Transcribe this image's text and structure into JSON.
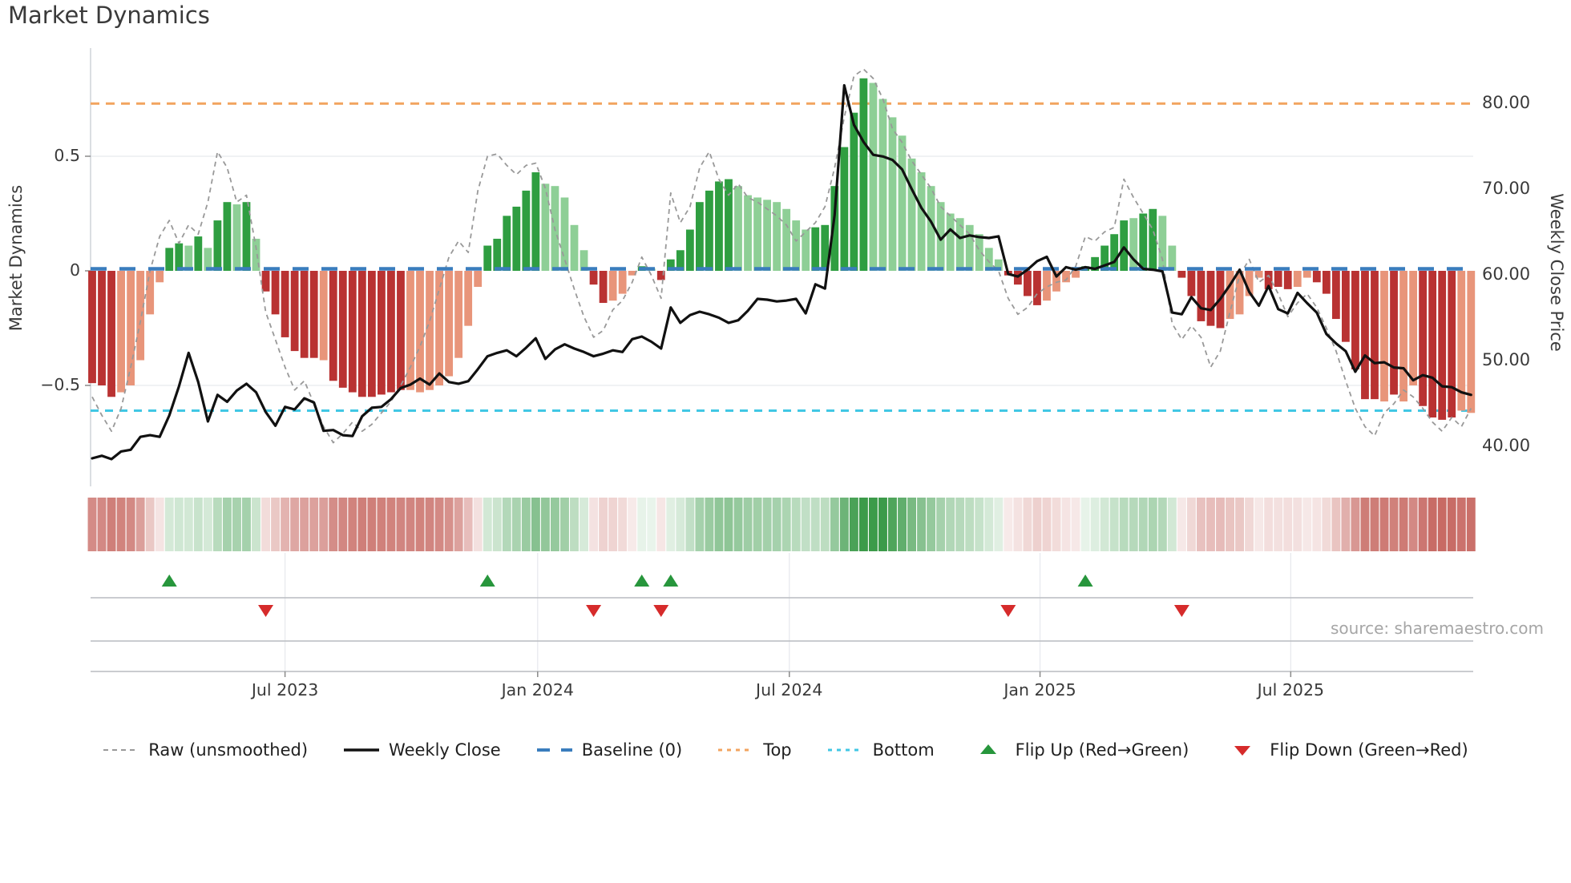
{
  "title": "Market Dynamics",
  "axes": {
    "left_label": "Market Dynamics",
    "right_label": "Weekly Close Price",
    "left_ticks": [
      {
        "label": "0.5",
        "value": 0.5
      },
      {
        "label": "0",
        "value": 0
      },
      {
        "label": "−0.5",
        "value": -0.5
      }
    ],
    "right_ticks": [
      {
        "label": "80.00",
        "value": 80
      },
      {
        "label": "70.00",
        "value": 70
      },
      {
        "label": "60.00",
        "value": 60
      },
      {
        "label": "50.00",
        "value": 50
      },
      {
        "label": "40.00",
        "value": 40
      }
    ],
    "x_ticks": [
      {
        "label": "Jul 2023",
        "week": 20.0
      },
      {
        "label": "Jan 2024",
        "week": 46.2
      },
      {
        "label": "Jul 2024",
        "week": 72.3
      },
      {
        "label": "Jan 2025",
        "week": 98.3
      },
      {
        "label": "Jul 2025",
        "week": 124.3
      }
    ]
  },
  "source": "source: sharemaestro.com",
  "legend": {
    "items": [
      {
        "label": "Raw (unsmoothed)",
        "type": "dash-gray"
      },
      {
        "label": "Weekly Close",
        "type": "solid-black"
      },
      {
        "label": "Baseline (0)",
        "type": "dash-blue"
      },
      {
        "label": "Top",
        "type": "dot-orange"
      },
      {
        "label": "Bottom",
        "type": "dot-cyan"
      },
      {
        "label": "Flip Up (Red→Green)",
        "type": "tri-up"
      },
      {
        "label": "Flip Down (Green→Red)",
        "type": "tri-down"
      }
    ]
  },
  "colors": {
    "bar_strong_red": "#b93232",
    "bar_soft_red": "#e8957a",
    "bar_strong_green": "#2f9e41",
    "bar_soft_green": "#8ecf96",
    "close_line": "#111111",
    "raw_line": "#999999",
    "baseline": "#3a7dbd",
    "top_line": "#f2a45f",
    "bottom_line": "#41c7e4",
    "flip_up": "#27963c",
    "flip_down": "#d62b2b",
    "heat_strong_red": "#c0564f",
    "heat_strong_green": "#3c9b4a",
    "grid": "#e8eaee",
    "spine": "#cfd4d9",
    "panel_line": "#b9bcc0",
    "tick": "#8a8a8a",
    "text_dark": "#3a3a3a"
  },
  "chart_data": {
    "type": "bar",
    "subtype": "oscillator-with-price-overlay-heatmap-and-flip-markers",
    "weeks": 144,
    "title": "Market Dynamics",
    "xlabel": "",
    "ylabel_left": "Market Dynamics",
    "ylabel_right": "Weekly Close Price",
    "left_ylim": [
      -0.9,
      0.97
    ],
    "right_ylim": [
      36.4,
      86.4
    ],
    "baseline_value": 0,
    "top_value": 0.73,
    "bottom_value": -0.61,
    "grid_values_left": [
      0.5,
      -0.5
    ],
    "legend_position": "bottom",
    "bar_values": [
      -0.49,
      -0.5,
      -0.55,
      -0.53,
      -0.5,
      -0.39,
      -0.19,
      -0.05,
      0.1,
      0.12,
      0.11,
      0.15,
      0.1,
      0.22,
      0.3,
      0.29,
      0.3,
      0.14,
      -0.09,
      -0.19,
      -0.29,
      -0.35,
      -0.38,
      -0.38,
      -0.39,
      -0.48,
      -0.51,
      -0.53,
      -0.55,
      -0.55,
      -0.54,
      -0.53,
      -0.52,
      -0.52,
      -0.53,
      -0.52,
      -0.5,
      -0.46,
      -0.38,
      -0.24,
      -0.07,
      0.11,
      0.14,
      0.24,
      0.28,
      0.35,
      0.43,
      0.38,
      0.37,
      0.32,
      0.2,
      0.09,
      -0.06,
      -0.14,
      -0.13,
      -0.1,
      -0.02,
      0.02,
      0.01,
      -0.04,
      0.05,
      0.09,
      0.18,
      0.3,
      0.35,
      0.39,
      0.4,
      0.37,
      0.33,
      0.32,
      0.31,
      0.3,
      0.27,
      0.22,
      0.18,
      0.19,
      0.2,
      0.37,
      0.54,
      0.69,
      0.84,
      0.82,
      0.75,
      0.67,
      0.59,
      0.49,
      0.43,
      0.37,
      0.3,
      0.25,
      0.23,
      0.2,
      0.16,
      0.1,
      0.05,
      -0.02,
      -0.06,
      -0.11,
      -0.15,
      -0.13,
      -0.09,
      -0.05,
      -0.03,
      0.02,
      0.06,
      0.11,
      0.16,
      0.22,
      0.23,
      0.25,
      0.27,
      0.24,
      0.11,
      -0.03,
      -0.11,
      -0.22,
      -0.24,
      -0.25,
      -0.21,
      -0.19,
      -0.11,
      -0.03,
      -0.08,
      -0.07,
      -0.08,
      -0.07,
      -0.03,
      -0.05,
      -0.1,
      -0.21,
      -0.31,
      -0.43,
      -0.56,
      -0.56,
      -0.57,
      -0.54,
      -0.57,
      -0.5,
      -0.59,
      -0.64,
      -0.65,
      -0.64,
      -0.61,
      -0.62
    ],
    "bar_tones": [
      "dr",
      "dr",
      "dr",
      "lr",
      "lr",
      "lr",
      "lr",
      "lr",
      "dg",
      "dg",
      "lg",
      "dg",
      "lg",
      "dg",
      "dg",
      "lg",
      "dg",
      "lg",
      "dr",
      "dr",
      "dr",
      "dr",
      "dr",
      "dr",
      "lr",
      "dr",
      "dr",
      "dr",
      "dr",
      "dr",
      "dr",
      "dr",
      "dr",
      "lr",
      "lr",
      "lr",
      "lr",
      "lr",
      "lr",
      "lr",
      "lr",
      "dg",
      "dg",
      "dg",
      "dg",
      "dg",
      "dg",
      "lg",
      "lg",
      "lg",
      "lg",
      "lg",
      "dr",
      "dr",
      "lr",
      "lr",
      "lr",
      "dg",
      "lg",
      "dr",
      "dg",
      "dg",
      "dg",
      "dg",
      "dg",
      "dg",
      "dg",
      "lg",
      "lg",
      "lg",
      "lg",
      "lg",
      "lg",
      "lg",
      "lg",
      "dg",
      "dg",
      "dg",
      "dg",
      "dg",
      "dg",
      "lg",
      "lg",
      "lg",
      "lg",
      "lg",
      "lg",
      "lg",
      "lg",
      "lg",
      "lg",
      "lg",
      "lg",
      "lg",
      "lg",
      "dr",
      "dr",
      "dr",
      "dr",
      "lr",
      "lr",
      "lr",
      "lr",
      "dg",
      "dg",
      "dg",
      "dg",
      "dg",
      "lg",
      "dg",
      "dg",
      "lg",
      "lg",
      "dr",
      "dr",
      "dr",
      "dr",
      "dr",
      "lr",
      "lr",
      "lr",
      "lr",
      "dr",
      "dr",
      "dr",
      "lr",
      "lr",
      "dr",
      "dr",
      "dr",
      "dr",
      "dr",
      "dr",
      "dr",
      "lr",
      "dr",
      "lr",
      "lr",
      "dr",
      "dr",
      "dr",
      "dr",
      "lr",
      "lr"
    ],
    "weekly_close": [
      38.6,
      38.9,
      38.5,
      39.4,
      39.6,
      41.1,
      41.3,
      41.1,
      43.6,
      47.0,
      50.9,
      47.5,
      42.9,
      46.0,
      45.2,
      46.5,
      47.3,
      46.3,
      44.0,
      42.4,
      44.6,
      44.3,
      45.6,
      45.1,
      41.8,
      41.9,
      41.3,
      41.2,
      43.5,
      44.5,
      44.6,
      45.5,
      46.8,
      47.2,
      47.9,
      47.2,
      48.5,
      47.5,
      47.3,
      47.6,
      49.0,
      50.5,
      50.9,
      51.2,
      50.5,
      51.5,
      52.6,
      50.2,
      51.3,
      51.9,
      51.4,
      51.0,
      50.5,
      50.8,
      51.2,
      51.0,
      52.5,
      52.8,
      52.2,
      51.4,
      56.2,
      54.4,
      55.3,
      55.7,
      55.4,
      55.0,
      54.4,
      54.7,
      55.8,
      57.2,
      57.1,
      56.9,
      57.0,
      57.2,
      55.5,
      58.9,
      58.4,
      67.0,
      82.1,
      77.5,
      75.5,
      74.0,
      73.8,
      73.4,
      72.3,
      70.0,
      67.8,
      66.2,
      64.1,
      65.3,
      64.3,
      64.6,
      64.4,
      64.3,
      64.5,
      60.1,
      59.8,
      60.6,
      61.6,
      62.1,
      59.8,
      60.9,
      60.6,
      60.9,
      60.7,
      61.1,
      61.5,
      63.2,
      61.8,
      60.7,
      60.6,
      60.4,
      55.6,
      55.4,
      57.4,
      56.1,
      55.9,
      57.2,
      58.8,
      60.6,
      58.0,
      56.4,
      58.7,
      56.0,
      55.5,
      57.9,
      56.7,
      55.6,
      53.1,
      52.0,
      51.1,
      48.7,
      50.6,
      49.7,
      49.8,
      49.2,
      49.1,
      47.7,
      48.3,
      48.0,
      47.0,
      46.9,
      46.3,
      46.0
    ],
    "raw_values": [
      -0.55,
      -0.63,
      -0.7,
      -0.6,
      -0.42,
      -0.22,
      0.0,
      0.15,
      0.22,
      0.12,
      0.2,
      0.16,
      0.3,
      0.52,
      0.45,
      0.3,
      0.33,
      0.1,
      -0.18,
      -0.3,
      -0.42,
      -0.52,
      -0.48,
      -0.58,
      -0.68,
      -0.75,
      -0.71,
      -0.66,
      -0.7,
      -0.67,
      -0.62,
      -0.57,
      -0.5,
      -0.42,
      -0.33,
      -0.22,
      -0.08,
      0.06,
      0.13,
      0.08,
      0.35,
      0.5,
      0.51,
      0.46,
      0.42,
      0.46,
      0.47,
      0.36,
      0.18,
      0.05,
      -0.08,
      -0.2,
      -0.29,
      -0.26,
      -0.17,
      -0.13,
      -0.05,
      0.06,
      -0.02,
      -0.12,
      0.34,
      0.21,
      0.28,
      0.45,
      0.52,
      0.4,
      0.33,
      0.38,
      0.32,
      0.3,
      0.27,
      0.24,
      0.2,
      0.13,
      0.17,
      0.21,
      0.28,
      0.45,
      0.67,
      0.85,
      0.88,
      0.84,
      0.75,
      0.62,
      0.56,
      0.48,
      0.42,
      0.36,
      0.28,
      0.24,
      0.2,
      0.16,
      0.09,
      0.04,
      0.0,
      -0.12,
      -0.19,
      -0.16,
      -0.1,
      -0.07,
      -0.05,
      -0.04,
      0.02,
      0.15,
      0.13,
      0.17,
      0.19,
      0.4,
      0.32,
      0.25,
      0.18,
      0.05,
      -0.23,
      -0.3,
      -0.24,
      -0.29,
      -0.42,
      -0.35,
      -0.18,
      -0.02,
      0.05,
      -0.05,
      -0.02,
      -0.1,
      -0.2,
      -0.14,
      -0.1,
      -0.16,
      -0.25,
      -0.35,
      -0.48,
      -0.6,
      -0.68,
      -0.72,
      -0.62,
      -0.58,
      -0.52,
      -0.55,
      -0.6,
      -0.66,
      -0.7,
      -0.64,
      -0.68,
      -0.6
    ],
    "flip_up_weeks": [
      8,
      41,
      57,
      60,
      103
    ],
    "flip_down_weeks": [
      18,
      52,
      59,
      95,
      113
    ],
    "heatmap": "one cell per week colored red-to-green by bar value"
  }
}
